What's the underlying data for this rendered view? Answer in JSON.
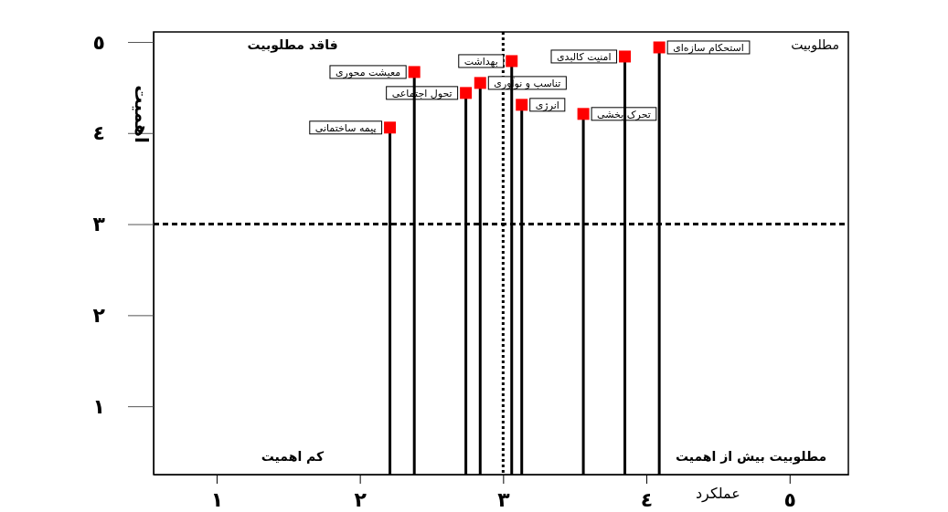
{
  "chart_data": {
    "type": "lollipop",
    "xlabel": "عملکرد",
    "ylabel": "اهمیت",
    "xlim": [
      0.56,
      5.41
    ],
    "xticks": [
      {
        "value": 1,
        "label": "١"
      },
      {
        "value": 2,
        "label": "٢"
      },
      {
        "value": 3,
        "label": "٣"
      },
      {
        "value": 4,
        "label": "٤"
      },
      {
        "value": 5,
        "label": "٥"
      }
    ],
    "ylim": [
      0.25,
      5.11
    ],
    "yticks": [
      {
        "value": 1,
        "label": "١"
      },
      {
        "value": 2,
        "label": "٢"
      },
      {
        "value": 3,
        "label": "٣"
      },
      {
        "value": 4,
        "label": "٤"
      },
      {
        "value": 5,
        "label": "٥"
      }
    ],
    "marker": "square",
    "grid": false,
    "series": [
      {
        "color": "#ff0000",
        "x": [
          4.09,
          3.85,
          3.06,
          2.38,
          2.84,
          2.74,
          3.13,
          3.56,
          2.21
        ],
        "values": [
          4.94,
          4.84,
          4.79,
          4.67,
          4.55,
          4.44,
          4.31,
          4.21,
          4.06
        ]
      }
    ],
    "ref_lines": [
      {
        "axis": "x",
        "value": 3,
        "color": "#000000",
        "line_style": "dotted"
      },
      {
        "axis": "y",
        "value": 3,
        "color": "#000000",
        "line_style": "dashed"
      }
    ],
    "annotations": [
      {
        "text": "استحکام سازه‌ای",
        "x": 4.09,
        "y": 4.94
      },
      {
        "text": "امنیت کالبدی",
        "x": 3.85,
        "y": 4.84
      },
      {
        "text": "بهداشت",
        "x": 3.06,
        "y": 4.79
      },
      {
        "text": "معیشت محوری",
        "x": 2.38,
        "y": 4.67
      },
      {
        "text": "تناسب و نوآوری",
        "x": 2.84,
        "y": 4.55
      },
      {
        "text": "تحول اجتماعی",
        "x": 2.74,
        "y": 4.44
      },
      {
        "text": "انرژی",
        "x": 3.13,
        "y": 4.31
      },
      {
        "text": "تحرک بخشی",
        "x": 3.56,
        "y": 4.21
      },
      {
        "text": "پیمه ساختمانی",
        "x": 2.21,
        "y": 4.06
      },
      "فاقد مطلوبیت",
      "مطلوبیت",
      "کم اهمیت",
      "مطلوبیت بیش از اهمیت"
    ]
  }
}
